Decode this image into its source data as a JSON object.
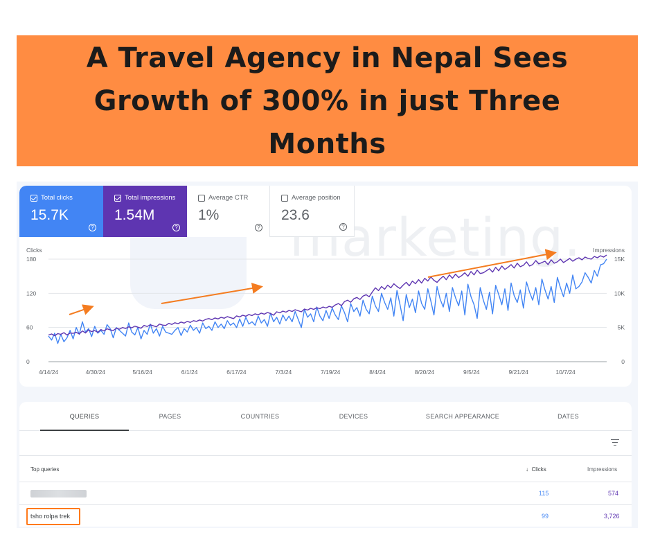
{
  "banner": {
    "title": "A Travel Agency in Nepal Sees Growth of 300% in just Three Months",
    "background": "#ff8c42"
  },
  "watermark": "marketing.",
  "metrics": [
    {
      "label": "Total clicks",
      "value": "15.7K",
      "checked": true,
      "color": "#4285f4"
    },
    {
      "label": "Total impressions",
      "value": "1.54M",
      "checked": true,
      "color": "#5e35b1"
    },
    {
      "label": "Average CTR",
      "value": "1%",
      "checked": false
    },
    {
      "label": "Average position",
      "value": "23.6",
      "checked": false
    }
  ],
  "chart_data": {
    "type": "line",
    "left_axis_label": "Clicks",
    "right_axis_label": "Impressions",
    "y_ticks": [
      "180",
      "120",
      "60",
      "0"
    ],
    "y2_ticks": [
      "15K",
      "10K",
      "5K",
      "0"
    ],
    "ylim": [
      0,
      180
    ],
    "y2lim": [
      0,
      15000
    ],
    "x_ticks": [
      "4/14/24",
      "4/30/24",
      "5/16/24",
      "6/1/24",
      "6/17/24",
      "7/3/24",
      "7/19/24",
      "8/4/24",
      "8/20/24",
      "9/5/24",
      "9/21/24",
      "10/7/24"
    ],
    "x_start": "2024-04-14",
    "x_end": "2024-10-21",
    "grid": true,
    "arrows": 3,
    "series": [
      {
        "name": "Clicks",
        "axis": "left",
        "color": "#4285f4",
        "values": [
          45,
          38,
          50,
          32,
          48,
          35,
          42,
          55,
          40,
          60,
          48,
          70,
          52,
          58,
          44,
          62,
          50,
          55,
          48,
          65,
          58,
          42,
          60,
          55,
          50,
          45,
          68,
          52,
          47,
          60,
          40,
          55,
          48,
          66,
          50,
          58,
          45,
          62,
          52,
          50,
          48,
          55,
          60,
          46,
          58,
          52,
          64,
          55,
          60,
          50,
          68,
          58,
          62,
          55,
          70,
          60,
          66,
          58,
          72,
          64,
          68,
          60,
          75,
          62,
          78,
          66,
          70,
          64,
          80,
          68,
          74,
          62,
          85,
          70,
          78,
          66,
          82,
          72,
          80,
          70,
          88,
          74,
          60,
          92,
          78,
          84,
          70,
          96,
          80,
          72,
          90,
          76,
          94,
          82,
          74,
          98,
          86,
          70,
          102,
          88,
          95,
          80,
          108,
          92,
          84,
          115,
          98,
          88,
          120,
          104,
          92,
          112,
          80,
          125,
          100,
          72,
          118,
          95,
          110,
          86,
          124,
          102,
          92,
          128,
          106,
          82,
          132,
          110,
          96,
          120,
          88,
          130,
          112,
          98,
          124,
          82,
          136,
          114,
          100,
          76,
          130,
          108,
          92,
          122,
          84,
          134,
          118,
          100,
          128,
          90,
          138,
          116,
          104,
          126,
          94,
          140,
          122,
          108,
          130,
          100,
          145,
          126,
          110,
          132,
          104,
          148,
          130,
          114,
          138,
          120,
          152,
          128,
          132,
          140,
          156,
          148,
          138,
          160,
          150,
          170,
          172,
          180
        ]
      },
      {
        "name": "Impressions",
        "axis": "right",
        "color": "#5e35b1",
        "values": [
          3900,
          4050,
          3800,
          4100,
          4000,
          4250,
          3900,
          4200,
          4150,
          4300,
          4050,
          4500,
          4200,
          4650,
          4400,
          4550,
          4300,
          4700,
          4500,
          4800,
          4650,
          4550,
          4900,
          4750,
          5000,
          4850,
          5100,
          4950,
          5200,
          5050,
          4900,
          5300,
          5150,
          5400,
          5250,
          5100,
          5500,
          5350,
          5300,
          5600,
          5450,
          5700,
          5550,
          5800,
          5650,
          5900,
          5750,
          6000,
          5900,
          6100,
          5950,
          6200,
          6300,
          6150,
          6400,
          6250,
          6500,
          6350,
          6600,
          6450,
          6300,
          6700,
          6550,
          6800,
          6650,
          6900,
          6750,
          7000,
          6850,
          7100,
          6950,
          7200,
          7050,
          6800,
          7300,
          7150,
          7400,
          7250,
          7500,
          7350,
          7600,
          7450,
          7300,
          7700,
          7550,
          7800,
          7650,
          7900,
          7750,
          8000,
          7850,
          8100,
          7950,
          8300,
          8500,
          8200,
          8800,
          9000,
          8700,
          9200,
          9400,
          9100,
          9600,
          9800,
          9500,
          10200,
          10800,
          10400,
          11000,
          10600,
          11200,
          10800,
          11400,
          11000,
          10700,
          11200,
          11600,
          11100,
          11800,
          11400,
          12000,
          11500,
          12200,
          11800,
          12400,
          11900,
          11600,
          12100,
          12500,
          12000,
          12700,
          12200,
          12800,
          12300,
          12600,
          13000,
          12500,
          13200,
          12700,
          13400,
          12900,
          13000,
          13300,
          13600,
          13100,
          13800,
          13300,
          14000,
          13500,
          13800,
          14200,
          13700,
          14400,
          13900,
          14100,
          14600,
          14000,
          14200,
          14800,
          14300,
          14500,
          14700,
          14200,
          14900,
          14400,
          14600,
          15000,
          14500,
          14800,
          15100,
          14700,
          15000,
          15200,
          14900,
          15300,
          15100,
          15000,
          15400,
          15200,
          15500,
          15300,
          15600
        ]
      }
    ]
  },
  "tabs": [
    "QUERIES",
    "PAGES",
    "COUNTRIES",
    "DEVICES",
    "SEARCH APPEARANCE",
    "DATES"
  ],
  "table": {
    "header_query": "Top queries",
    "header_clicks": "Clicks",
    "header_impressions": "Impressions",
    "rows": [
      {
        "query": "",
        "clicks": "115",
        "impressions": "574"
      },
      {
        "query": "tsho rolpa trek",
        "clicks": "99",
        "impressions": "3,726"
      }
    ]
  }
}
